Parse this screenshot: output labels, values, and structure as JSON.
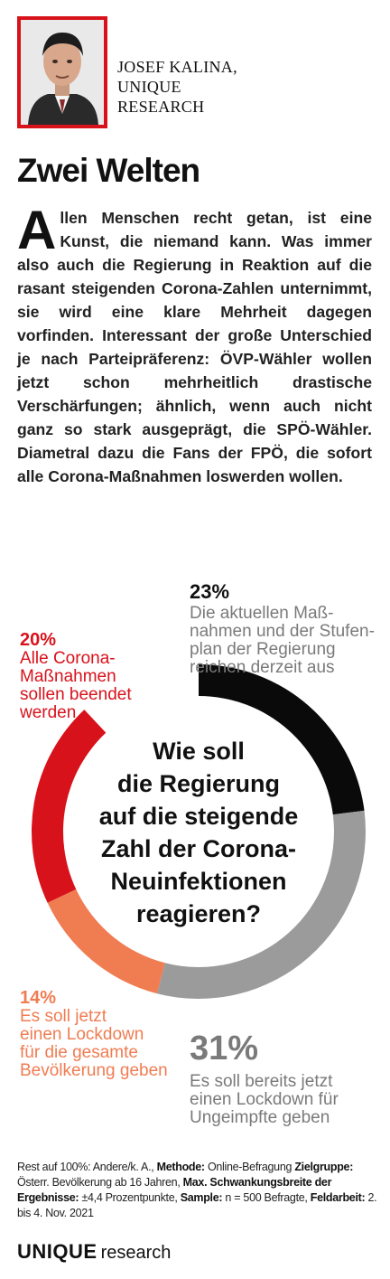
{
  "author": {
    "line1": "JOSEF KALINA,",
    "line2": "UNIQUE",
    "line3": "RESEARCH"
  },
  "headline": "Zwei Welten",
  "intro": {
    "dropcap": "A",
    "text": "llen Menschen recht getan, ist eine Kunst, die niemand kann. Was immer also auch die Regierung in Reaktion auf die rasant steigenden Corona-Zahlen unternimmt, sie wird eine klare Mehrheit dagegen vorfinden. Interessant der große Unterschied je nach Parteipräferenz: ÖVP-Wähler wollen jetzt schon mehrheitlich drastische Verschärfungen; ähnlich, wenn auch nicht ganz so stark ausgeprägt, die SPÖ-Wähler. Diametral dazu die Fans der FPÖ, die sofort alle Corona-Maßnahmen loswerden wollen."
  },
  "chart_data": {
    "type": "pie",
    "variant": "donut",
    "center_title": [
      "Wie soll",
      "die Regierung",
      "auf die steigende",
      "Zahl der Corona-",
      "Neuinfektionen",
      "reagieren?"
    ],
    "slices": [
      {
        "pct_label": "23%",
        "value": 23,
        "label_lines": [
          "Die aktuellen Maß-",
          "nahmen und der Stufen-",
          "plan der Regierung",
          "reichen derzeit aus"
        ],
        "color": "#0a0a0a",
        "label_color": "#7a7a7a",
        "pct_color": "#111111"
      },
      {
        "pct_label": "31%",
        "value": 31,
        "label_lines": [
          "Es soll bereits jetzt",
          "einen Lockdown für",
          "Ungeimpfte geben"
        ],
        "color": "#9b9b9b",
        "label_color": "#7a7a7a",
        "pct_color": "#7a7a7a"
      },
      {
        "pct_label": "14%",
        "value": 14,
        "label_lines": [
          "Es soll jetzt",
          "einen Lockdown",
          "für die gesamte",
          "Bevölkerung geben"
        ],
        "color": "#f07c52",
        "label_color": "#f07c52",
        "pct_color": "#f07c52"
      },
      {
        "pct_label": "20%",
        "value": 20,
        "label_lines": [
          "Alle Corona-",
          "Maßnahmen",
          "sollen beendet",
          "werden"
        ],
        "color": "#d8121b",
        "label_color": "#d8121b",
        "pct_color": "#d8121b"
      }
    ],
    "remainder": {
      "value": 12,
      "color": "#ffffff"
    }
  },
  "footer": {
    "p1": "Rest auf 100%: Andere/k. A., ",
    "methode_label": "Methode:",
    "methode": " Online-Befragung",
    "zielgruppe_label": "Zielgruppe:",
    "zielgruppe": " Österr. Bevölkerung ab 16 Jahren, ",
    "max_label": "Max. Schwankungsbreite der Ergebnisse:",
    "max": " ±4,4 Prozentpunkte,",
    "sample_label": "Sample:",
    "sample": " n = 500 Befragte, ",
    "feldarbeit_label": "Feldarbeit:",
    "feldarbeit": " 2. bis 4. Nov. 2021"
  },
  "logo": {
    "part1": "UNIQUE",
    "part2": "research"
  }
}
